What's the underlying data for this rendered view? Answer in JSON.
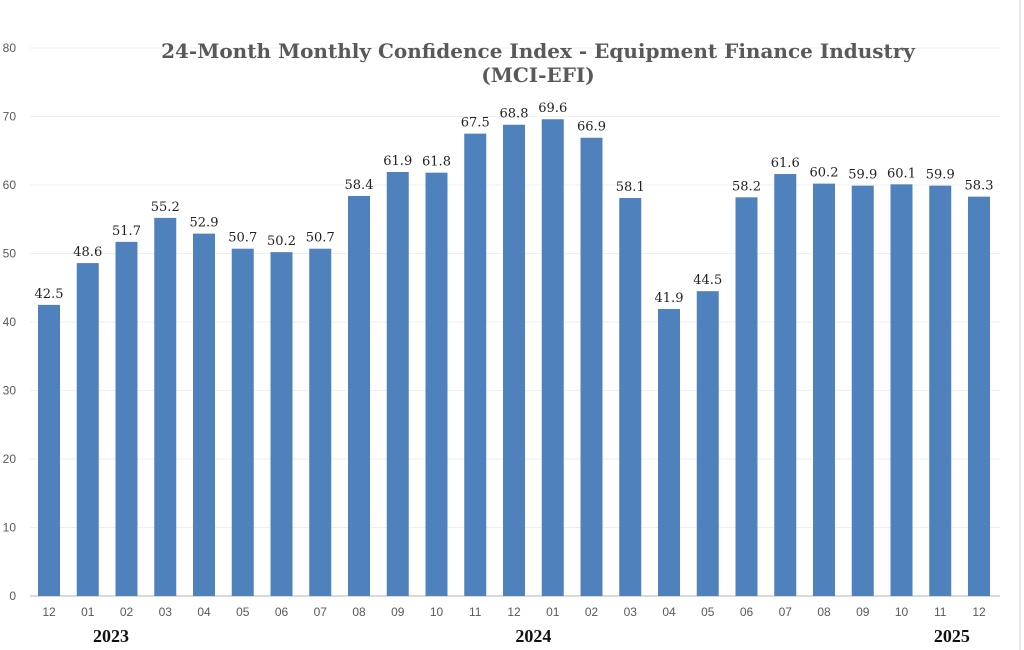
{
  "chart_data": {
    "type": "bar",
    "title": "24-Month Monthly Confidence Index - Equipment Finance Industry",
    "subtitle": "(MCI-EFI)",
    "categories": [
      "12",
      "01",
      "02",
      "03",
      "04",
      "05",
      "06",
      "07",
      "08",
      "09",
      "10",
      "11",
      "12",
      "01",
      "02",
      "03",
      "04",
      "05",
      "06",
      "07",
      "08",
      "09",
      "10",
      "11",
      "12"
    ],
    "values": [
      42.5,
      48.6,
      51.7,
      55.2,
      52.9,
      50.7,
      50.2,
      50.7,
      58.4,
      61.9,
      61.8,
      67.5,
      68.8,
      69.6,
      66.9,
      58.1,
      41.9,
      44.5,
      58.2,
      61.6,
      60.2,
      59.9,
      60.1,
      59.9,
      58.3
    ],
    "data_labels": [
      "42.5",
      "48.6",
      "51.7",
      "55.2",
      "52.9",
      "50.7",
      "50.2",
      "50.7",
      "58.4",
      "61.9",
      "61.8",
      "67.5",
      "68.8",
      "69.6",
      "66.9",
      "58.1",
      "41.9",
      "44.5",
      "58.2",
      "61.6",
      "60.2",
      "59.9",
      "60.1",
      "59.9",
      "58.3"
    ],
    "year_labels": [
      {
        "text": "2023",
        "category_index": 1.6
      },
      {
        "text": "2024",
        "category_index": 12.5
      },
      {
        "text": "2025",
        "category_index": 23.3
      }
    ],
    "yticks": [
      0,
      10,
      20,
      30,
      40,
      50,
      60,
      70,
      80
    ],
    "ylim": [
      0,
      80
    ],
    "grid": true,
    "bar_color": "#4f81bd",
    "xlabel": "",
    "ylabel": ""
  }
}
